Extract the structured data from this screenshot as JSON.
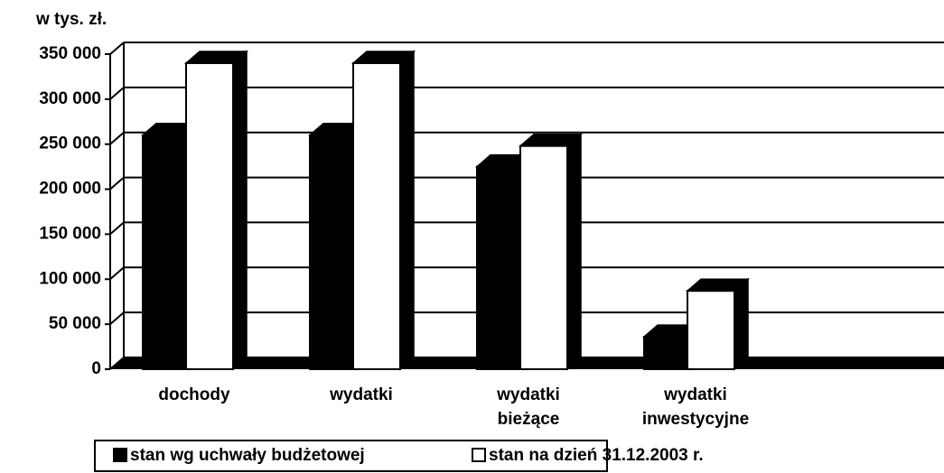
{
  "chart_data": {
    "type": "bar3d",
    "y_label": "w tys. zł.",
    "categories": [
      "dochody",
      "wydatki",
      "wydatki bieżące",
      "wydatki inwestycyjne"
    ],
    "series": [
      {
        "name": "stan wg uchwały budżetowej",
        "color": "#000000",
        "values": [
          260000,
          260000,
          225000,
          36000
        ]
      },
      {
        "name": "stan na dzień 31.12.2003 r.",
        "color": "#ffffff",
        "values": [
          340000,
          340000,
          248000,
          87000
        ]
      }
    ],
    "ylim": [
      0,
      350000
    ],
    "yticks": [
      0,
      {
        "value": 50000,
        "label": "50 000"
      },
      {
        "value": 100000,
        "label": "100 000"
      },
      {
        "value": 150000,
        "label": "150 000"
      },
      {
        "value": 200000,
        "label": "200 000"
      },
      {
        "value": 250000,
        "label": "250 000"
      },
      {
        "value": 300000,
        "label": "300 000"
      },
      {
        "value": 350000,
        "label": "350 000"
      }
    ],
    "grid": true
  }
}
